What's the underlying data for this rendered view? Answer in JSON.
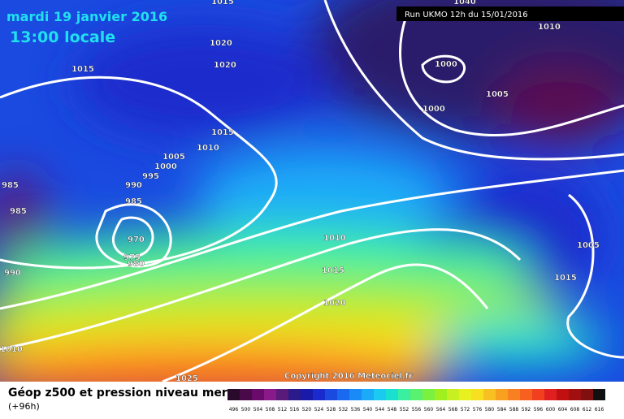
{
  "header": {
    "date": "mardi 19 janvier 2016",
    "time": "13:00 locale",
    "run": "Run UKMO 12h du 15/01/2016"
  },
  "copyright": "Copyright 2016 Meteociel.fr",
  "isobar_labels": [
    "1015",
    "1020",
    "1020",
    "1015",
    "1015",
    "1010",
    "1005",
    "1000",
    "995",
    "990",
    "985",
    "985",
    "985",
    "970",
    "975",
    "980",
    "990",
    "1010",
    "1015",
    "1020",
    "1010",
    "1025",
    "1040",
    "1010",
    "1000",
    "1005",
    "1000",
    "1005",
    "1015"
  ],
  "legend": {
    "title": "Géop z500 et pression niveau mer",
    "subtitle": "(+96h)",
    "values": [
      496,
      500,
      504,
      508,
      512,
      516,
      520,
      524,
      528,
      532,
      536,
      540,
      544,
      548,
      552,
      556,
      560,
      564,
      568,
      572,
      576,
      580,
      584,
      588,
      592,
      596,
      600,
      604,
      608,
      612,
      616
    ],
    "colors": [
      "#2a0a2a",
      "#4a0a4a",
      "#6a0a6a",
      "#8a1a8a",
      "#5a1a7a",
      "#2a1a8a",
      "#1a1aaa",
      "#1a2acc",
      "#1a4ae0",
      "#1a6af0",
      "#1a8af8",
      "#1aaaf8",
      "#1acaf0",
      "#1ae0d0",
      "#3af0a0",
      "#5af070",
      "#7af040",
      "#a0f020",
      "#c8f020",
      "#e8f020",
      "#f8e020",
      "#f8c020",
      "#f8a020",
      "#f88020",
      "#f86020",
      "#f04020",
      "#e02020",
      "#c01010",
      "#a01010",
      "#801010",
      "#101010"
    ]
  }
}
